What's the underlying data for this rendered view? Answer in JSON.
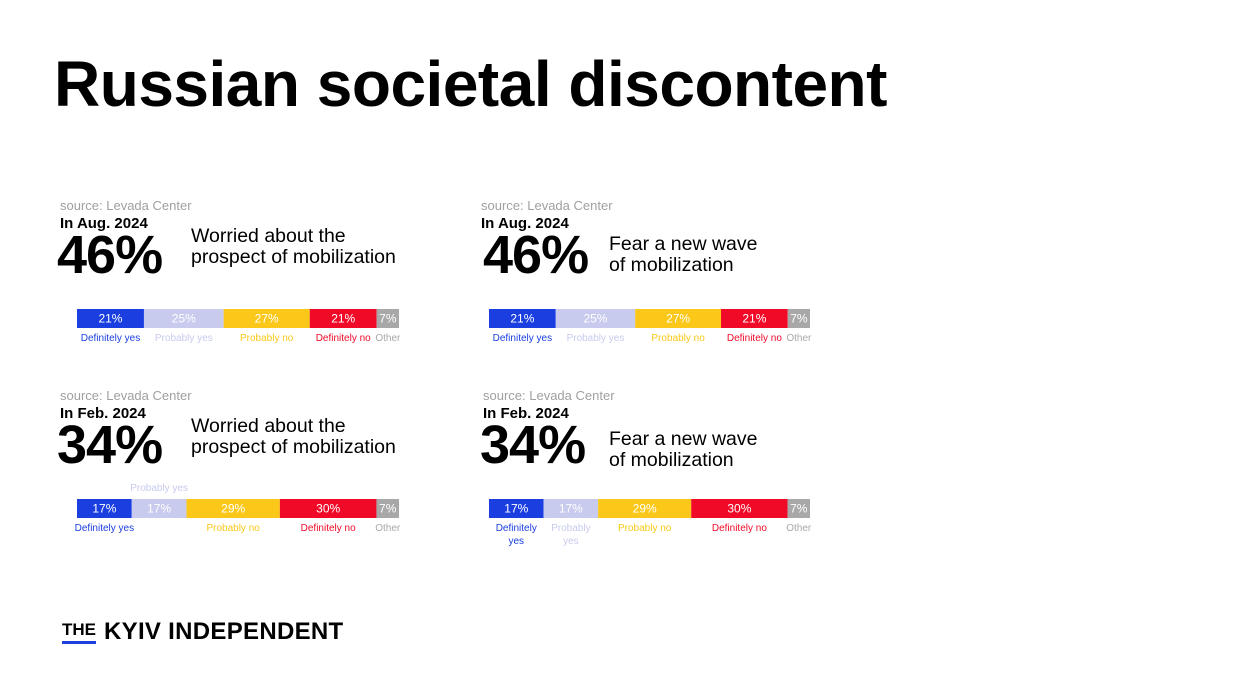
{
  "title": "Russian societal discontent",
  "logo": {
    "the": "THE",
    "name": "KYIV INDEPENDENT"
  },
  "colors": {
    "Definitely yes": "#1a3ee0",
    "Probably yes": "#c8caee",
    "Probably no": "#fbc81a",
    "Definitely no": "#f00a28",
    "Other": "#a8a8a8"
  },
  "panels": [
    {
      "source": "source: Levada Center",
      "date": "In Aug. 2024",
      "big": "46%",
      "desc": [
        "Worried about the",
        "prospect of mobilization"
      ]
    },
    {
      "source": "source: Levada Center",
      "date": "In Aug. 2024",
      "big": "46%",
      "desc": [
        "Fear a new wave",
        "of mobilization"
      ]
    },
    {
      "source": "source: Levada Center",
      "date": "In Feb. 2024",
      "big": "34%",
      "desc": [
        "Worried about the",
        "prospect of mobilization"
      ]
    },
    {
      "source": "source: Levada Center",
      "date": "In Feb. 2024",
      "big": "34%",
      "desc": [
        "Fear a new wave",
        "of mobilization"
      ]
    }
  ],
  "chart_data": [
    {
      "type": "bar",
      "stacked": true,
      "orientation": "horizontal",
      "categories": [
        "Definitely yes",
        "Probably yes",
        "Probably no",
        "Definitely no",
        "Other"
      ],
      "values": [
        21,
        25,
        27,
        21,
        7
      ],
      "value_labels": [
        "21%",
        "25%",
        "27%",
        "21%",
        "7%"
      ]
    },
    {
      "type": "bar",
      "stacked": true,
      "orientation": "horizontal",
      "categories": [
        "Definitely yes",
        "Probably yes",
        "Probably no",
        "Definitely no",
        "Other"
      ],
      "values": [
        21,
        25,
        27,
        21,
        7
      ],
      "value_labels": [
        "21%",
        "25%",
        "27%",
        "21%",
        "7%"
      ]
    },
    {
      "type": "bar",
      "stacked": true,
      "orientation": "horizontal",
      "categories": [
        "Definitely yes",
        "Probably yes",
        "Probably no",
        "Definitely no",
        "Other"
      ],
      "values": [
        17,
        17,
        29,
        30,
        7
      ],
      "value_labels": [
        "17%",
        "17%",
        "29%",
        "30%",
        "7%"
      ]
    },
    {
      "type": "bar",
      "stacked": true,
      "orientation": "horizontal",
      "categories": [
        "Definitely yes",
        "Probably yes",
        "Probably no",
        "Definitely no",
        "Other"
      ],
      "values": [
        17,
        17,
        29,
        30,
        7
      ],
      "value_labels": [
        "17%",
        "17%",
        "29%",
        "30%",
        "7%"
      ]
    }
  ]
}
